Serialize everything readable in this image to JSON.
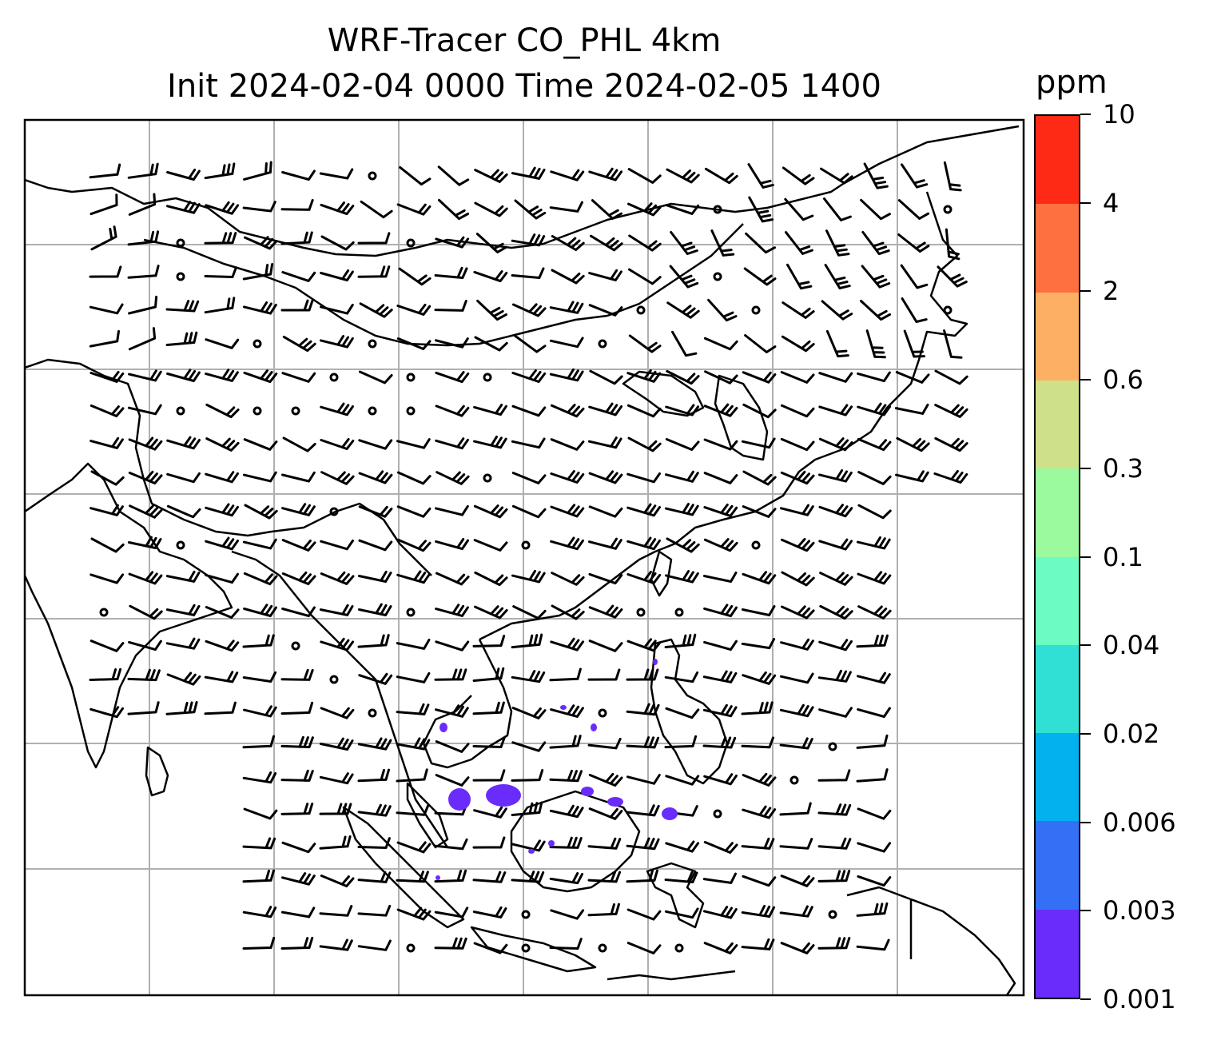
{
  "title": {
    "line1": "WRF-Tracer CO_PHL 4km",
    "line2": "Init 2024-02-04 0000 Time 2024-02-05 1400"
  },
  "colorbar": {
    "unit": "ppm",
    "levels": [
      "0.001",
      "0.003",
      "0.006",
      "0.02",
      "0.04",
      "0.1",
      "0.3",
      "0.6",
      "2",
      "4",
      "10"
    ],
    "colors": [
      "#6a2cfa",
      "#3470f6",
      "#03b1ee",
      "#30e0d4",
      "#6afcc2",
      "#9bf99e",
      "#cfe188",
      "#fdb063",
      "#ff7041",
      "#ff2a16"
    ]
  },
  "map": {
    "gridlines": true,
    "tracer_color": "#6a2cfa",
    "coast_color": "#000000"
  }
}
